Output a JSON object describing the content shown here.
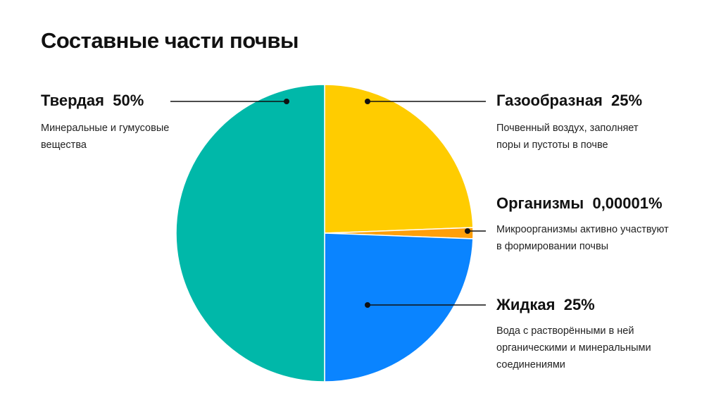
{
  "chart_data": {
    "type": "pie",
    "title": "Составные части почвы",
    "slices": [
      {
        "key": "solid",
        "name": "Твердая",
        "value_label": "50%",
        "value": 50,
        "color": "#00B8A9",
        "description_lines": [
          "Минеральные и гумусовые",
          "вещества"
        ]
      },
      {
        "key": "gas",
        "name": "Газообразная",
        "value_label": "25%",
        "value": 25,
        "color": "#FFCC00",
        "description_lines": [
          "Почвенный воздух, заполняет",
          "поры и пустоты в почве"
        ]
      },
      {
        "key": "organisms",
        "name": "Организмы",
        "value_label": "0,00001%",
        "value": 1e-05,
        "color": "#FF9F0A",
        "description_lines": [
          "Микроорганизмы активно участвуют",
          "в формировании почвы"
        ]
      },
      {
        "key": "liquid",
        "name": "Жидкая",
        "value_label": "25%",
        "value": 25,
        "color": "#0A84FF",
        "description_lines": [
          "Вода с растворёнными в ней",
          "органическими и минеральными",
          "соединениями"
        ]
      }
    ]
  }
}
